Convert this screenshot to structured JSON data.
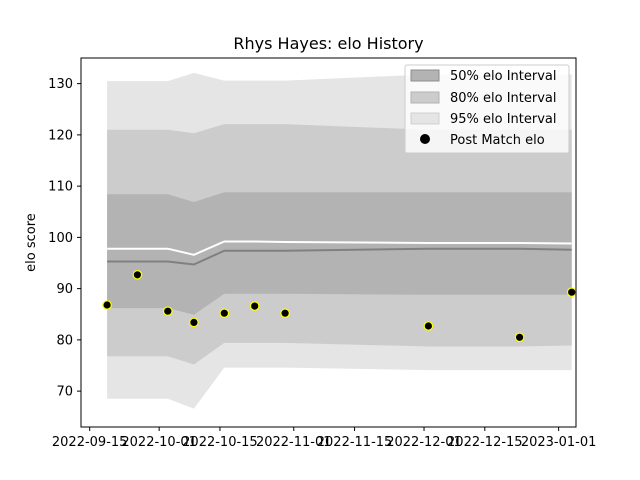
{
  "chart_data": {
    "type": "line",
    "title": "Rhys Hayes: elo History",
    "xlabel": "",
    "ylabel": "elo score",
    "xlim": [
      "2022-09-13",
      "2023-01-05"
    ],
    "ylim": [
      63,
      135
    ],
    "x_ticks": [
      "2022-09-15",
      "2022-10-01",
      "2022-10-15",
      "2022-11-01",
      "2022-11-15",
      "2022-12-01",
      "2022-12-15",
      "2023-01-01"
    ],
    "y_ticks": [
      70,
      80,
      90,
      100,
      110,
      120,
      130
    ],
    "grid": false,
    "legend_position": "top-right",
    "legend": [
      "50% elo Interval",
      "80% elo Interval",
      "95% elo Interval",
      "Post Match elo"
    ],
    "x": [
      "2022-09-19",
      "2022-09-26",
      "2022-10-03",
      "2022-10-09",
      "2022-10-16",
      "2022-10-23",
      "2022-10-30",
      "2022-12-02",
      "2022-12-23",
      "2023-01-04"
    ],
    "mean": [
      95.3,
      95.3,
      95.3,
      94.7,
      97.4,
      97.4,
      97.4,
      97.8,
      97.8,
      97.6
    ],
    "median": [
      97.8,
      97.8,
      97.8,
      96.6,
      99.2,
      99.2,
      99.1,
      98.9,
      98.9,
      98.8
    ],
    "band_50": {
      "lower": [
        86.2,
        86.2,
        86.2,
        84.9,
        89.0,
        89.0,
        89.0,
        88.8,
        88.8,
        88.8
      ],
      "upper": [
        108.4,
        108.4,
        108.4,
        106.9,
        108.8,
        108.8,
        108.8,
        108.8,
        108.8,
        108.8
      ]
    },
    "band_80": {
      "lower": [
        76.8,
        76.8,
        76.8,
        75.2,
        79.4,
        79.4,
        79.4,
        78.7,
        78.7,
        78.9
      ],
      "upper": [
        121.0,
        121.0,
        121.0,
        120.3,
        122.1,
        122.1,
        122.1,
        121.0,
        121.0,
        121.0
      ]
    },
    "band_95": {
      "lower": [
        68.5,
        68.5,
        68.5,
        66.6,
        74.6,
        74.6,
        74.6,
        74.1,
        74.1,
        74.1
      ],
      "upper": [
        130.5,
        130.5,
        130.5,
        132.1,
        130.6,
        130.6,
        130.6,
        131.8,
        131.8,
        131.8
      ]
    },
    "post_match_elo": [
      {
        "x": "2022-09-19",
        "y": 86.8
      },
      {
        "x": "2022-09-26",
        "y": 92.7
      },
      {
        "x": "2022-10-03",
        "y": 85.6
      },
      {
        "x": "2022-10-09",
        "y": 83.4
      },
      {
        "x": "2022-10-16",
        "y": 85.2
      },
      {
        "x": "2022-10-23",
        "y": 86.6
      },
      {
        "x": "2022-10-30",
        "y": 85.2
      },
      {
        "x": "2022-12-02",
        "y": 82.7
      },
      {
        "x": "2022-12-23",
        "y": 80.5
      },
      {
        "x": "2023-01-04",
        "y": 89.3
      }
    ],
    "colors": {
      "band_50": "#b3b3b3",
      "band_80": "#cccccc",
      "band_95": "#e5e5e5",
      "mean_line": "#808080",
      "median_line": "#ffffff",
      "marker_fill": "#000000",
      "marker_edge": "#ffff00"
    }
  }
}
